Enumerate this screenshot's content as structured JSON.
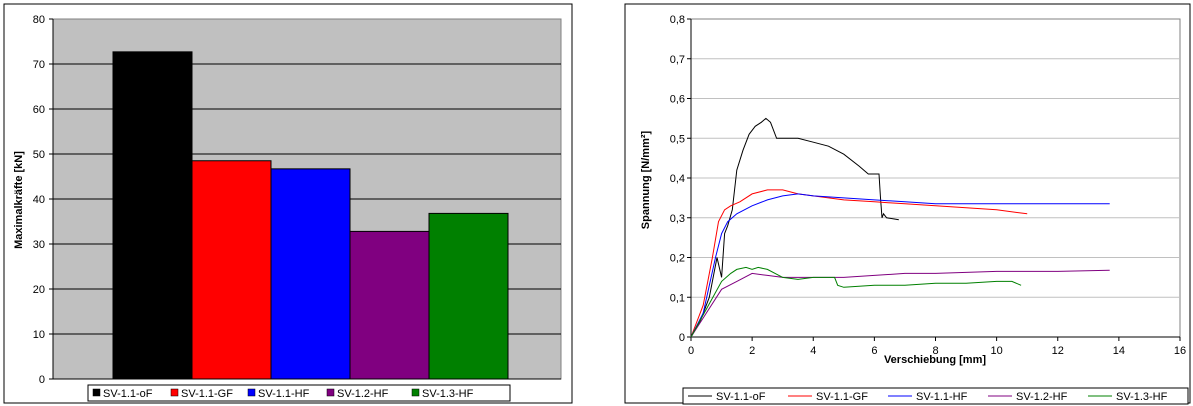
{
  "chart_data": [
    {
      "type": "bar",
      "title": "",
      "xlabel": "",
      "ylabel": "Maximalkräfte [kN]",
      "ylim": [
        0,
        80
      ],
      "yticks": [
        0,
        10,
        20,
        30,
        40,
        50,
        60,
        70,
        80
      ],
      "grid": true,
      "legend_position": "bottom",
      "categories": [
        "SV-1.1-oF",
        "SV-1.1-GF",
        "SV-1.1-HF",
        "SV-1.2-HF",
        "SV-1.3-HF"
      ],
      "values": [
        72.7,
        48.5,
        46.7,
        32.8,
        36.8
      ],
      "colors": [
        "#000000",
        "#ff0000",
        "#0000ff",
        "#800080",
        "#008000"
      ],
      "legend": [
        "SV-1.1-oF",
        "SV-1.1-GF",
        "SV-1.1-HF",
        "SV-1.2-HF",
        "SV-1.3-HF"
      ]
    },
    {
      "type": "line",
      "title": "",
      "xlabel": "Verschiebung [mm]",
      "ylabel": "Spannung [N/mm²]",
      "xlim": [
        0,
        16
      ],
      "ylim": [
        0,
        0.8
      ],
      "xticks": [
        "0",
        "2",
        "4",
        "6",
        "8",
        "10",
        "12",
        "14",
        "16"
      ],
      "yticks": [
        "0",
        "0,1",
        "0,2",
        "0,3",
        "0,4",
        "0,5",
        "0,6",
        "0,7",
        "0,8"
      ],
      "grid": true,
      "legend_position": "bottom",
      "series": [
        {
          "name": "SV-1.1-oF",
          "color": "#000000",
          "x": [
            0,
            0.3,
            0.6,
            0.85,
            1.0,
            1.1,
            1.2,
            1.35,
            1.5,
            1.7,
            1.9,
            2.1,
            2.3,
            2.45,
            2.6,
            2.8,
            3.0,
            3.5,
            4.0,
            4.5,
            5.0,
            5.5,
            5.8,
            6.0,
            6.15,
            6.2,
            6.25,
            6.3,
            6.4,
            6.8
          ],
          "y": [
            0,
            0.04,
            0.1,
            0.2,
            0.15,
            0.26,
            0.28,
            0.32,
            0.42,
            0.47,
            0.51,
            0.53,
            0.54,
            0.55,
            0.54,
            0.5,
            0.5,
            0.5,
            0.49,
            0.48,
            0.46,
            0.43,
            0.41,
            0.41,
            0.41,
            0.35,
            0.3,
            0.31,
            0.3,
            0.295
          ]
        },
        {
          "name": "SV-1.1-GF",
          "color": "#ff0000",
          "x": [
            0,
            0.4,
            0.7,
            0.9,
            1.1,
            1.3,
            1.6,
            2.0,
            2.5,
            3.0,
            3.5,
            4.0,
            5.0,
            6.0,
            7.0,
            8.0,
            9.0,
            10.0,
            11.0
          ],
          "y": [
            0,
            0.08,
            0.2,
            0.29,
            0.32,
            0.33,
            0.34,
            0.36,
            0.37,
            0.37,
            0.36,
            0.355,
            0.345,
            0.34,
            0.335,
            0.33,
            0.325,
            0.32,
            0.31
          ]
        },
        {
          "name": "SV-1.1-HF",
          "color": "#0000ff",
          "x": [
            0,
            0.4,
            0.8,
            1.0,
            1.2,
            1.5,
            2.0,
            2.5,
            3.0,
            3.5,
            4.0,
            5.0,
            6.0,
            7.0,
            8.0,
            10.0,
            12.0,
            13.7
          ],
          "y": [
            0,
            0.06,
            0.2,
            0.26,
            0.29,
            0.31,
            0.33,
            0.345,
            0.355,
            0.36,
            0.355,
            0.35,
            0.345,
            0.34,
            0.335,
            0.335,
            0.335,
            0.335
          ]
        },
        {
          "name": "SV-1.2-HF",
          "color": "#800080",
          "x": [
            0,
            0.5,
            1.0,
            1.5,
            2.0,
            2.5,
            3.0,
            4.0,
            5.0,
            6.0,
            7.0,
            8.0,
            10.0,
            12.0,
            13.7
          ],
          "y": [
            0,
            0.06,
            0.12,
            0.14,
            0.16,
            0.155,
            0.15,
            0.15,
            0.15,
            0.155,
            0.16,
            0.16,
            0.165,
            0.165,
            0.168
          ]
        },
        {
          "name": "SV-1.3-HF",
          "color": "#008000",
          "x": [
            0,
            0.5,
            1.0,
            1.3,
            1.5,
            1.8,
            2.0,
            2.2,
            2.5,
            3.0,
            3.5,
            4.0,
            4.7,
            4.8,
            5.0,
            6.0,
            7.0,
            8.0,
            9.0,
            10.0,
            10.5,
            10.8
          ],
          "y": [
            0,
            0.07,
            0.14,
            0.16,
            0.17,
            0.175,
            0.17,
            0.175,
            0.17,
            0.15,
            0.145,
            0.15,
            0.15,
            0.13,
            0.125,
            0.13,
            0.13,
            0.135,
            0.135,
            0.14,
            0.14,
            0.13
          ]
        }
      ]
    }
  ]
}
